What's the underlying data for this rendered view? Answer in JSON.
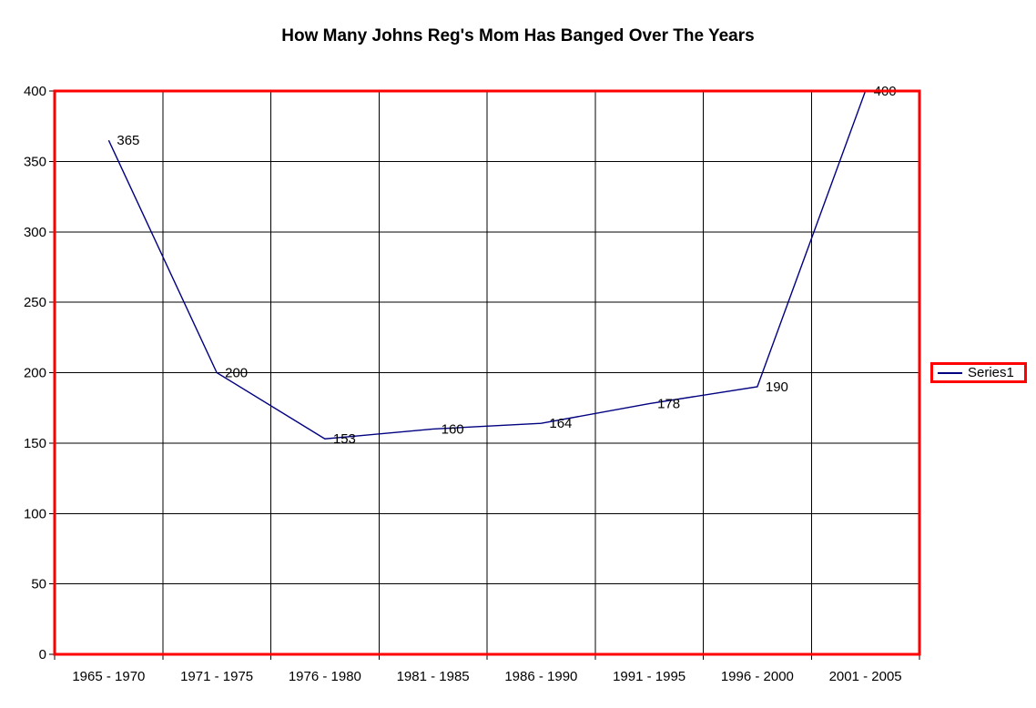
{
  "chart_data": {
    "type": "line",
    "title": "How Many Johns Reg's Mom Has Banged Over The Years",
    "categories": [
      "1965 - 1970",
      "1971 - 1975",
      "1976 - 1980",
      "1981 - 1985",
      "1986 - 1990",
      "1991 - 1995",
      "1996 - 2000",
      "2001 - 2005"
    ],
    "series": [
      {
        "name": "Series1",
        "values": [
          365,
          200,
          153,
          160,
          164,
          178,
          190,
          400
        ]
      }
    ],
    "ylim": [
      0,
      400
    ],
    "y_ticks": [
      0,
      50,
      100,
      150,
      200,
      250,
      300,
      350,
      400
    ],
    "xlabel": "",
    "ylabel": "",
    "grid": true,
    "show_data_labels": true,
    "legend_position": "right",
    "colors": {
      "series_line": "#000080",
      "plot_border": "#ff0000",
      "legend_border": "#ff0000",
      "gridline": "#000000",
      "text": "#000000",
      "background": "#ffffff"
    }
  }
}
